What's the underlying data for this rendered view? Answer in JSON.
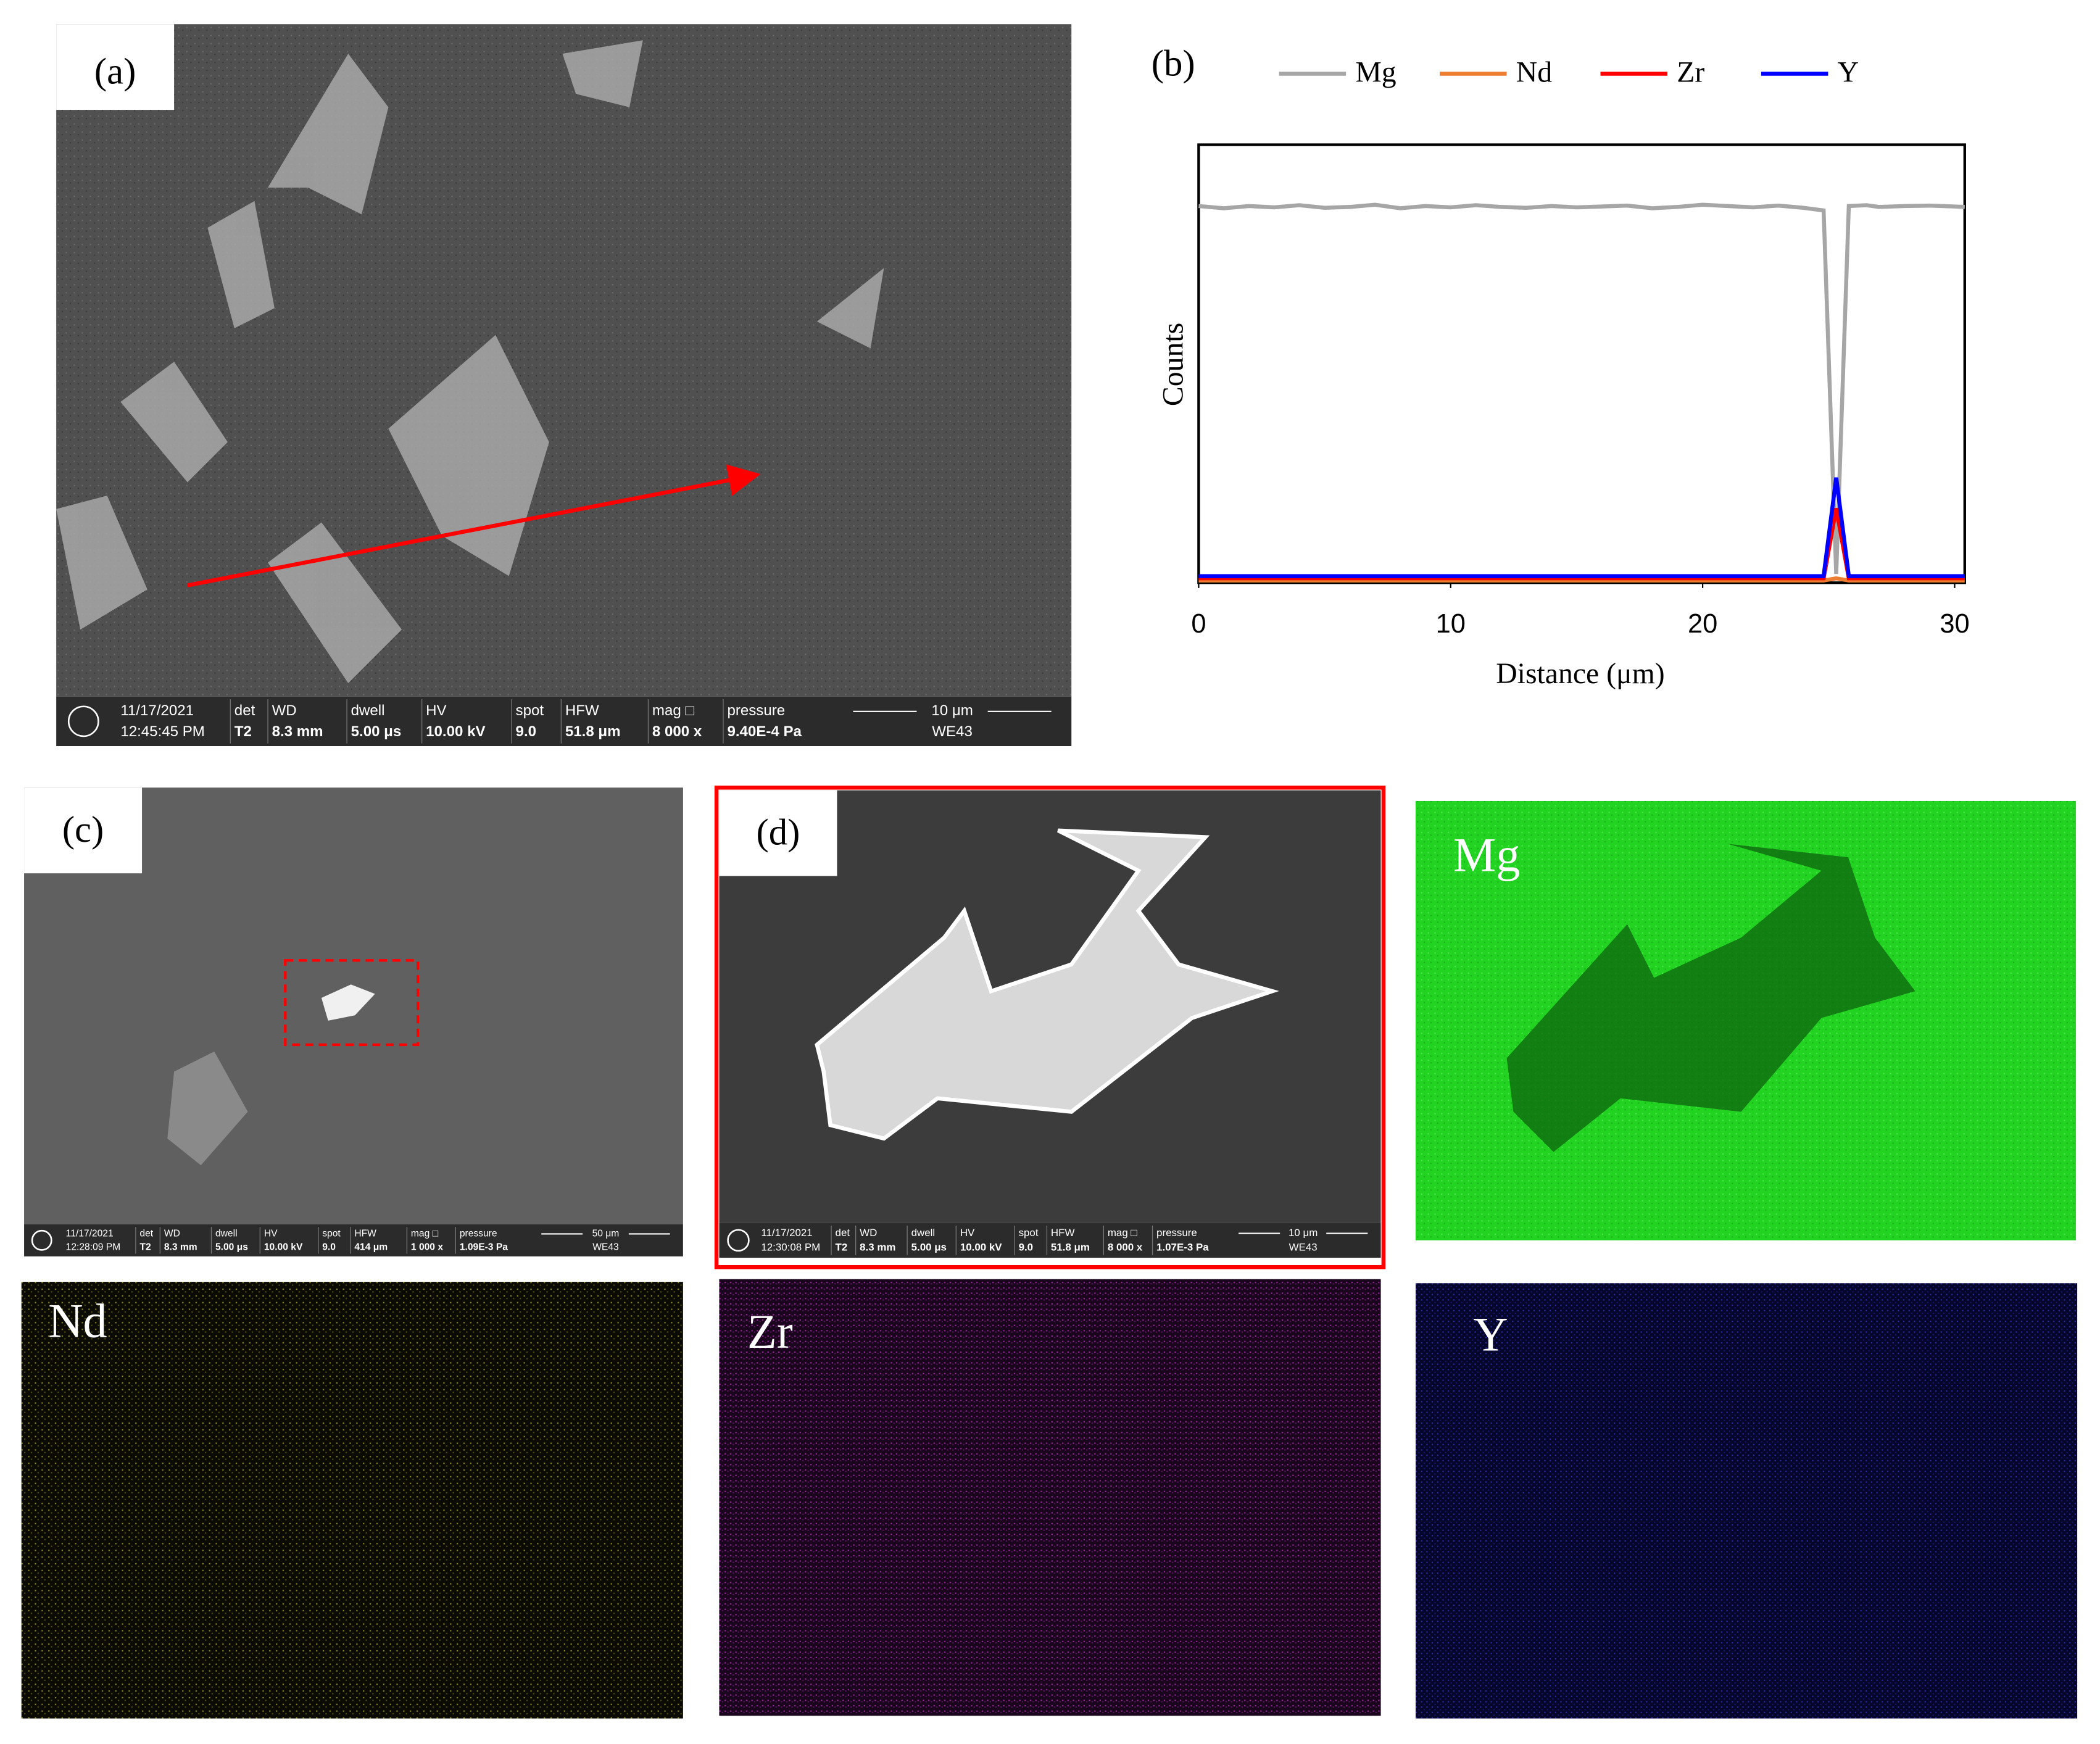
{
  "panels": {
    "a": "(a)",
    "b": "(b)",
    "c": "(c)",
    "d": "(d)"
  },
  "sem_bars": [
    {
      "date": "11/17/2021",
      "time": "12:45:45 PM",
      "fields": [
        {
          "header": "det",
          "value": "T2"
        },
        {
          "header": "WD",
          "value": "8.3 mm"
        },
        {
          "header": "dwell",
          "value": "5.00 μs"
        },
        {
          "header": "HV",
          "value": "10.00 kV"
        },
        {
          "header": "spot",
          "value": "9.0"
        },
        {
          "header": "HFW",
          "value": "51.8 μm"
        },
        {
          "header": "mag □",
          "value": "8 000 x"
        },
        {
          "header": "pressure",
          "value": "9.40E-4 Pa"
        }
      ],
      "scale": "10 μm",
      "sample": "WE43"
    },
    {
      "date": "11/17/2021",
      "time": "12:28:09 PM",
      "fields": [
        {
          "header": "det",
          "value": "T2"
        },
        {
          "header": "WD",
          "value": "8.3 mm"
        },
        {
          "header": "dwell",
          "value": "5.00 μs"
        },
        {
          "header": "HV",
          "value": "10.00 kV"
        },
        {
          "header": "spot",
          "value": "9.0"
        },
        {
          "header": "HFW",
          "value": "414 μm"
        },
        {
          "header": "mag □",
          "value": "1 000 x"
        },
        {
          "header": "pressure",
          "value": "1.09E-3 Pa"
        }
      ],
      "scale": "50 μm",
      "sample": "WE43"
    },
    {
      "date": "11/17/2021",
      "time": "12:30:08 PM",
      "fields": [
        {
          "header": "det",
          "value": "T2"
        },
        {
          "header": "WD",
          "value": "8.3 mm"
        },
        {
          "header": "dwell",
          "value": "5.00 μs"
        },
        {
          "header": "HV",
          "value": "10.00 kV"
        },
        {
          "header": "spot",
          "value": "9.0"
        },
        {
          "header": "HFW",
          "value": "51.8 μm"
        },
        {
          "header": "mag □",
          "value": "8 000 x"
        },
        {
          "header": "pressure",
          "value": "1.07E-3 Pa"
        }
      ],
      "scale": "10 μm",
      "sample": "WE43"
    }
  ],
  "maps": [
    "Mg",
    "Nd",
    "Zr",
    "Y"
  ],
  "chart_data": {
    "type": "line",
    "xlabel": "Distance (μm)",
    "ylabel": "Counts",
    "x": [
      0,
      1,
      2,
      3,
      4,
      5,
      6,
      7,
      8,
      9,
      10,
      11,
      12,
      13,
      14,
      15,
      16,
      17,
      18,
      19,
      20,
      21,
      22,
      23,
      24,
      24.8,
      25.3,
      25.8,
      26.5,
      27,
      28,
      29,
      30,
      30.4
    ],
    "series": [
      {
        "name": "Mg",
        "color": "#a6a6a6",
        "values": [
          86,
          85.5,
          86,
          85.7,
          86.2,
          85.6,
          85.8,
          86.3,
          85.5,
          86,
          85.7,
          86.2,
          85.8,
          85.6,
          86,
          85.7,
          85.9,
          86.1,
          85.5,
          85.8,
          86.3,
          86,
          85.7,
          86.1,
          85.6,
          85,
          2,
          86,
          86.2,
          85.8,
          86,
          86.1,
          85.9,
          85.8
        ]
      },
      {
        "name": "Nd",
        "color": "#ed7d31",
        "values": [
          0.5,
          0.5,
          0.5,
          0.5,
          0.5,
          0.5,
          0.5,
          0.5,
          0.5,
          0.5,
          0.5,
          0.5,
          0.5,
          0.5,
          0.5,
          0.5,
          0.5,
          0.5,
          0.5,
          0.5,
          0.5,
          0.5,
          0.5,
          0.5,
          0.5,
          0.5,
          1,
          0.5,
          0.5,
          0.5,
          0.5,
          0.5,
          0.5,
          0.5
        ]
      },
      {
        "name": "Zr",
        "color": "#ff0000",
        "values": [
          1,
          1,
          1,
          1,
          1,
          1,
          1,
          1,
          1,
          1,
          1,
          1,
          1,
          1,
          1,
          1,
          1,
          1,
          1,
          1,
          1,
          1,
          1,
          1,
          1,
          1,
          17,
          1,
          1,
          1,
          1,
          1,
          1,
          1
        ]
      },
      {
        "name": "Y",
        "color": "#0000ff",
        "values": [
          1.5,
          1.5,
          1.5,
          1.5,
          1.5,
          1.5,
          1.5,
          1.5,
          1.5,
          1.5,
          1.5,
          1.5,
          1.5,
          1.5,
          1.5,
          1.5,
          1.5,
          1.5,
          1.5,
          1.5,
          1.5,
          1.5,
          1.5,
          1.5,
          1.5,
          1.5,
          24,
          1.5,
          1.5,
          1.5,
          1.5,
          1.5,
          1.5,
          1.5
        ]
      }
    ],
    "xlim": [
      0,
      30.4
    ],
    "ylim": [
      0,
      100
    ],
    "xticks": [
      0,
      10,
      20,
      30
    ]
  }
}
